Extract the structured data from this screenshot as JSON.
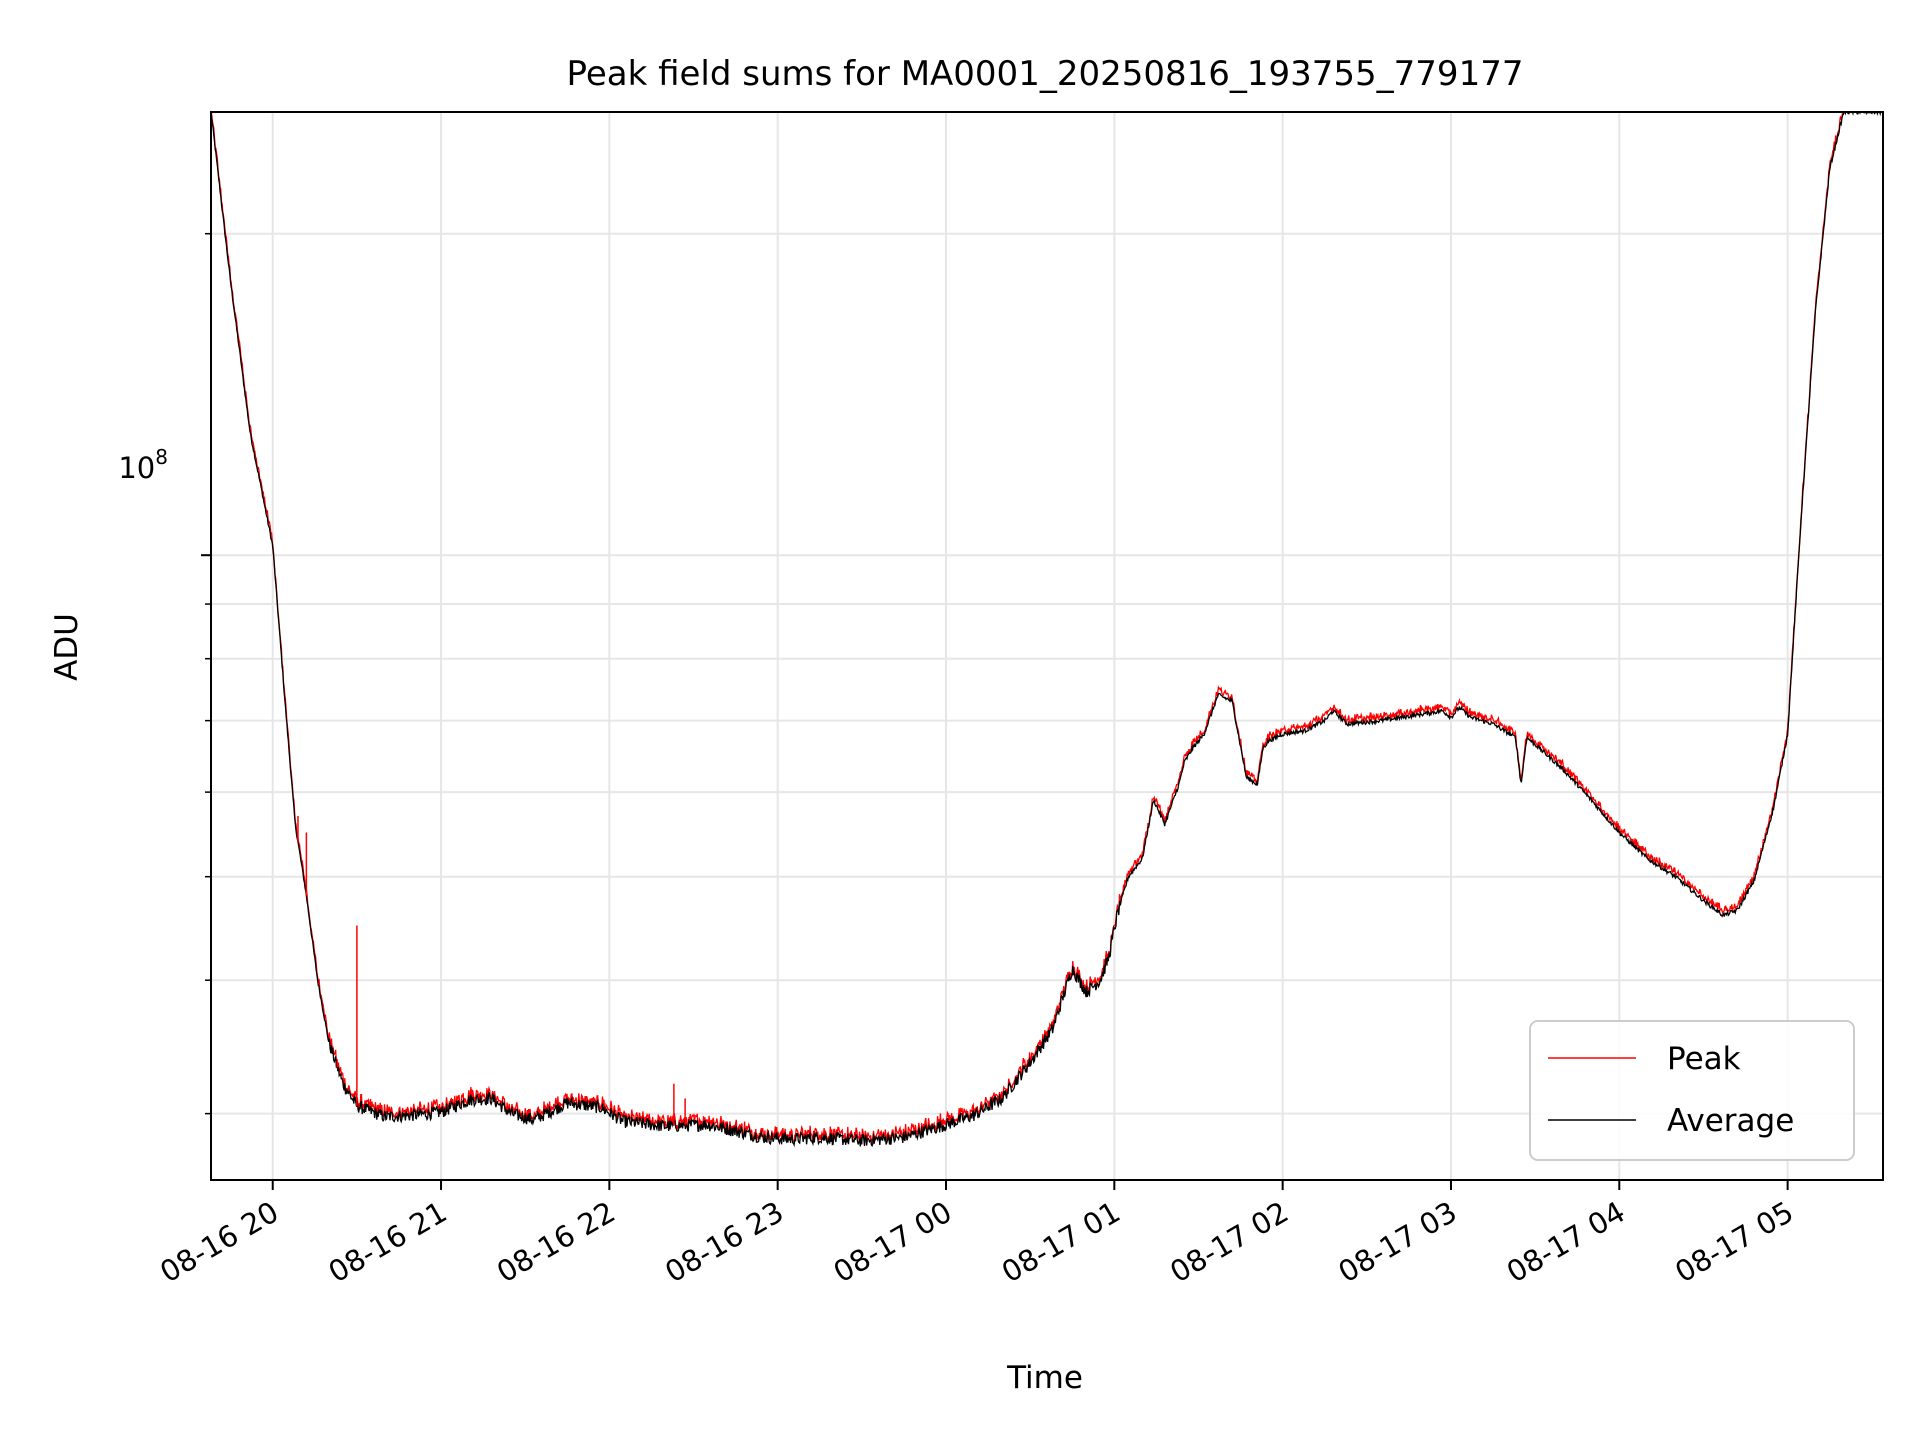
{
  "chart_data": {
    "type": "line",
    "title": "Peak field sums for MA0001_20250816_193755_779177",
    "xlabel": "Time",
    "ylabel": "ADU",
    "yscale": "log",
    "ylim": [
      26000000,
      260000000
    ],
    "ytick_major": {
      "base": "10",
      "exp": "8",
      "value": 100000000
    },
    "ytick_minor": [
      30000000,
      40000000,
      50000000,
      60000000,
      70000000,
      80000000,
      90000000,
      200000000
    ],
    "xlim": [
      "2025-08-16 19:38",
      "2025-08-17 05:34"
    ],
    "xticks": [
      "2025-08-16 20:00",
      "2025-08-16 21:00",
      "2025-08-16 22:00",
      "2025-08-16 23:00",
      "2025-08-17 00:00",
      "2025-08-17 01:00",
      "2025-08-17 02:00",
      "2025-08-17 03:00",
      "2025-08-17 04:00",
      "2025-08-17 05:00"
    ],
    "xtick_labels": [
      "08-16 20",
      "08-16 21",
      "08-16 22",
      "08-16 23",
      "08-17 00",
      "08-17 01",
      "08-17 02",
      "08-17 03",
      "08-17 04",
      "08-17 05"
    ],
    "grid": true,
    "legend_position": "lower-right",
    "series": [
      {
        "name": "Peak",
        "color": "#ff0000",
        "spikes": [
          [
            "2025-08-16 20:09",
            57000000
          ],
          [
            "2025-08-16 20:12",
            55000000
          ],
          [
            "2025-08-16 20:30",
            45000000
          ],
          [
            "2025-08-16 20:23",
            33500000
          ],
          [
            "2025-08-16 22:23",
            32000000
          ],
          [
            "2025-08-16 22:27",
            31000000
          ]
        ]
      },
      {
        "name": "Average",
        "color": "#000000"
      }
    ],
    "x": [
      "2025-08-16 19:38",
      "2025-08-16 19:45",
      "2025-08-16 19:52",
      "2025-08-16 20:00",
      "2025-08-16 20:04",
      "2025-08-16 20:08",
      "2025-08-16 20:12",
      "2025-08-16 20:16",
      "2025-08-16 20:20",
      "2025-08-16 20:25",
      "2025-08-16 20:30",
      "2025-08-16 20:40",
      "2025-08-16 20:50",
      "2025-08-16 21:00",
      "2025-08-16 21:10",
      "2025-08-16 21:18",
      "2025-08-16 21:25",
      "2025-08-16 21:33",
      "2025-08-16 21:45",
      "2025-08-16 21:57",
      "2025-08-16 22:05",
      "2025-08-16 22:20",
      "2025-08-16 22:35",
      "2025-08-16 22:45",
      "2025-08-16 22:55",
      "2025-08-16 23:05",
      "2025-08-16 23:15",
      "2025-08-16 23:30",
      "2025-08-16 23:45",
      "2025-08-17 00:00",
      "2025-08-17 00:10",
      "2025-08-17 00:20",
      "2025-08-17 00:30",
      "2025-08-17 00:38",
      "2025-08-17 00:45",
      "2025-08-17 00:50",
      "2025-08-17 00:55",
      "2025-08-17 00:58",
      "2025-08-17 01:01",
      "2025-08-17 01:05",
      "2025-08-17 01:10",
      "2025-08-17 01:14",
      "2025-08-17 01:18",
      "2025-08-17 01:23",
      "2025-08-17 01:25",
      "2025-08-17 01:28",
      "2025-08-17 01:32",
      "2025-08-17 01:37",
      "2025-08-17 01:42",
      "2025-08-17 01:47",
      "2025-08-17 01:51",
      "2025-08-17 01:53",
      "2025-08-17 01:55",
      "2025-08-17 02:00",
      "2025-08-17 02:08",
      "2025-08-17 02:15",
      "2025-08-17 02:18",
      "2025-08-17 02:23",
      "2025-08-17 02:35",
      "2025-08-17 02:50",
      "2025-08-17 02:57",
      "2025-08-17 03:00",
      "2025-08-17 03:03",
      "2025-08-17 03:07",
      "2025-08-17 03:15",
      "2025-08-17 03:23",
      "2025-08-17 03:25",
      "2025-08-17 03:27",
      "2025-08-17 03:30",
      "2025-08-17 03:40",
      "2025-08-17 03:50",
      "2025-08-17 04:00",
      "2025-08-17 04:10",
      "2025-08-17 04:20",
      "2025-08-17 04:30",
      "2025-08-17 04:37",
      "2025-08-17 04:42",
      "2025-08-17 04:48",
      "2025-08-17 04:55",
      "2025-08-17 05:00",
      "2025-08-17 05:05",
      "2025-08-17 05:10",
      "2025-08-17 05:15",
      "2025-08-17 05:20",
      "2025-08-17 05:34"
    ],
    "y": [
      260000000,
      180000000,
      130000000,
      102000000,
      75000000,
      56000000,
      48000000,
      40000000,
      35000000,
      32000000,
      30500000,
      29800000,
      29900000,
      30100000,
      30900000,
      31000000,
      30000000,
      29600000,
      30700000,
      30400000,
      29500000,
      29200000,
      29300000,
      28900000,
      28500000,
      28400000,
      28500000,
      28300000,
      28500000,
      29300000,
      29900000,
      31000000,
      33500000,
      36000000,
      41000000,
      39000000,
      40000000,
      42000000,
      46000000,
      50000000,
      52000000,
      59000000,
      56000000,
      61000000,
      64000000,
      66000000,
      68000000,
      74000000,
      73000000,
      62000000,
      61000000,
      66000000,
      67000000,
      68000000,
      68500000,
      70000000,
      71500000,
      69500000,
      70000000,
      71000000,
      71500000,
      70500000,
      72000000,
      70500000,
      69500000,
      67500000,
      61000000,
      67500000,
      66500000,
      63000000,
      59000000,
      55000000,
      52000000,
      50000000,
      47500000,
      46000000,
      46500000,
      49500000,
      58000000,
      68000000,
      110000000,
      170000000,
      230000000,
      260000000,
      260000000
    ]
  }
}
